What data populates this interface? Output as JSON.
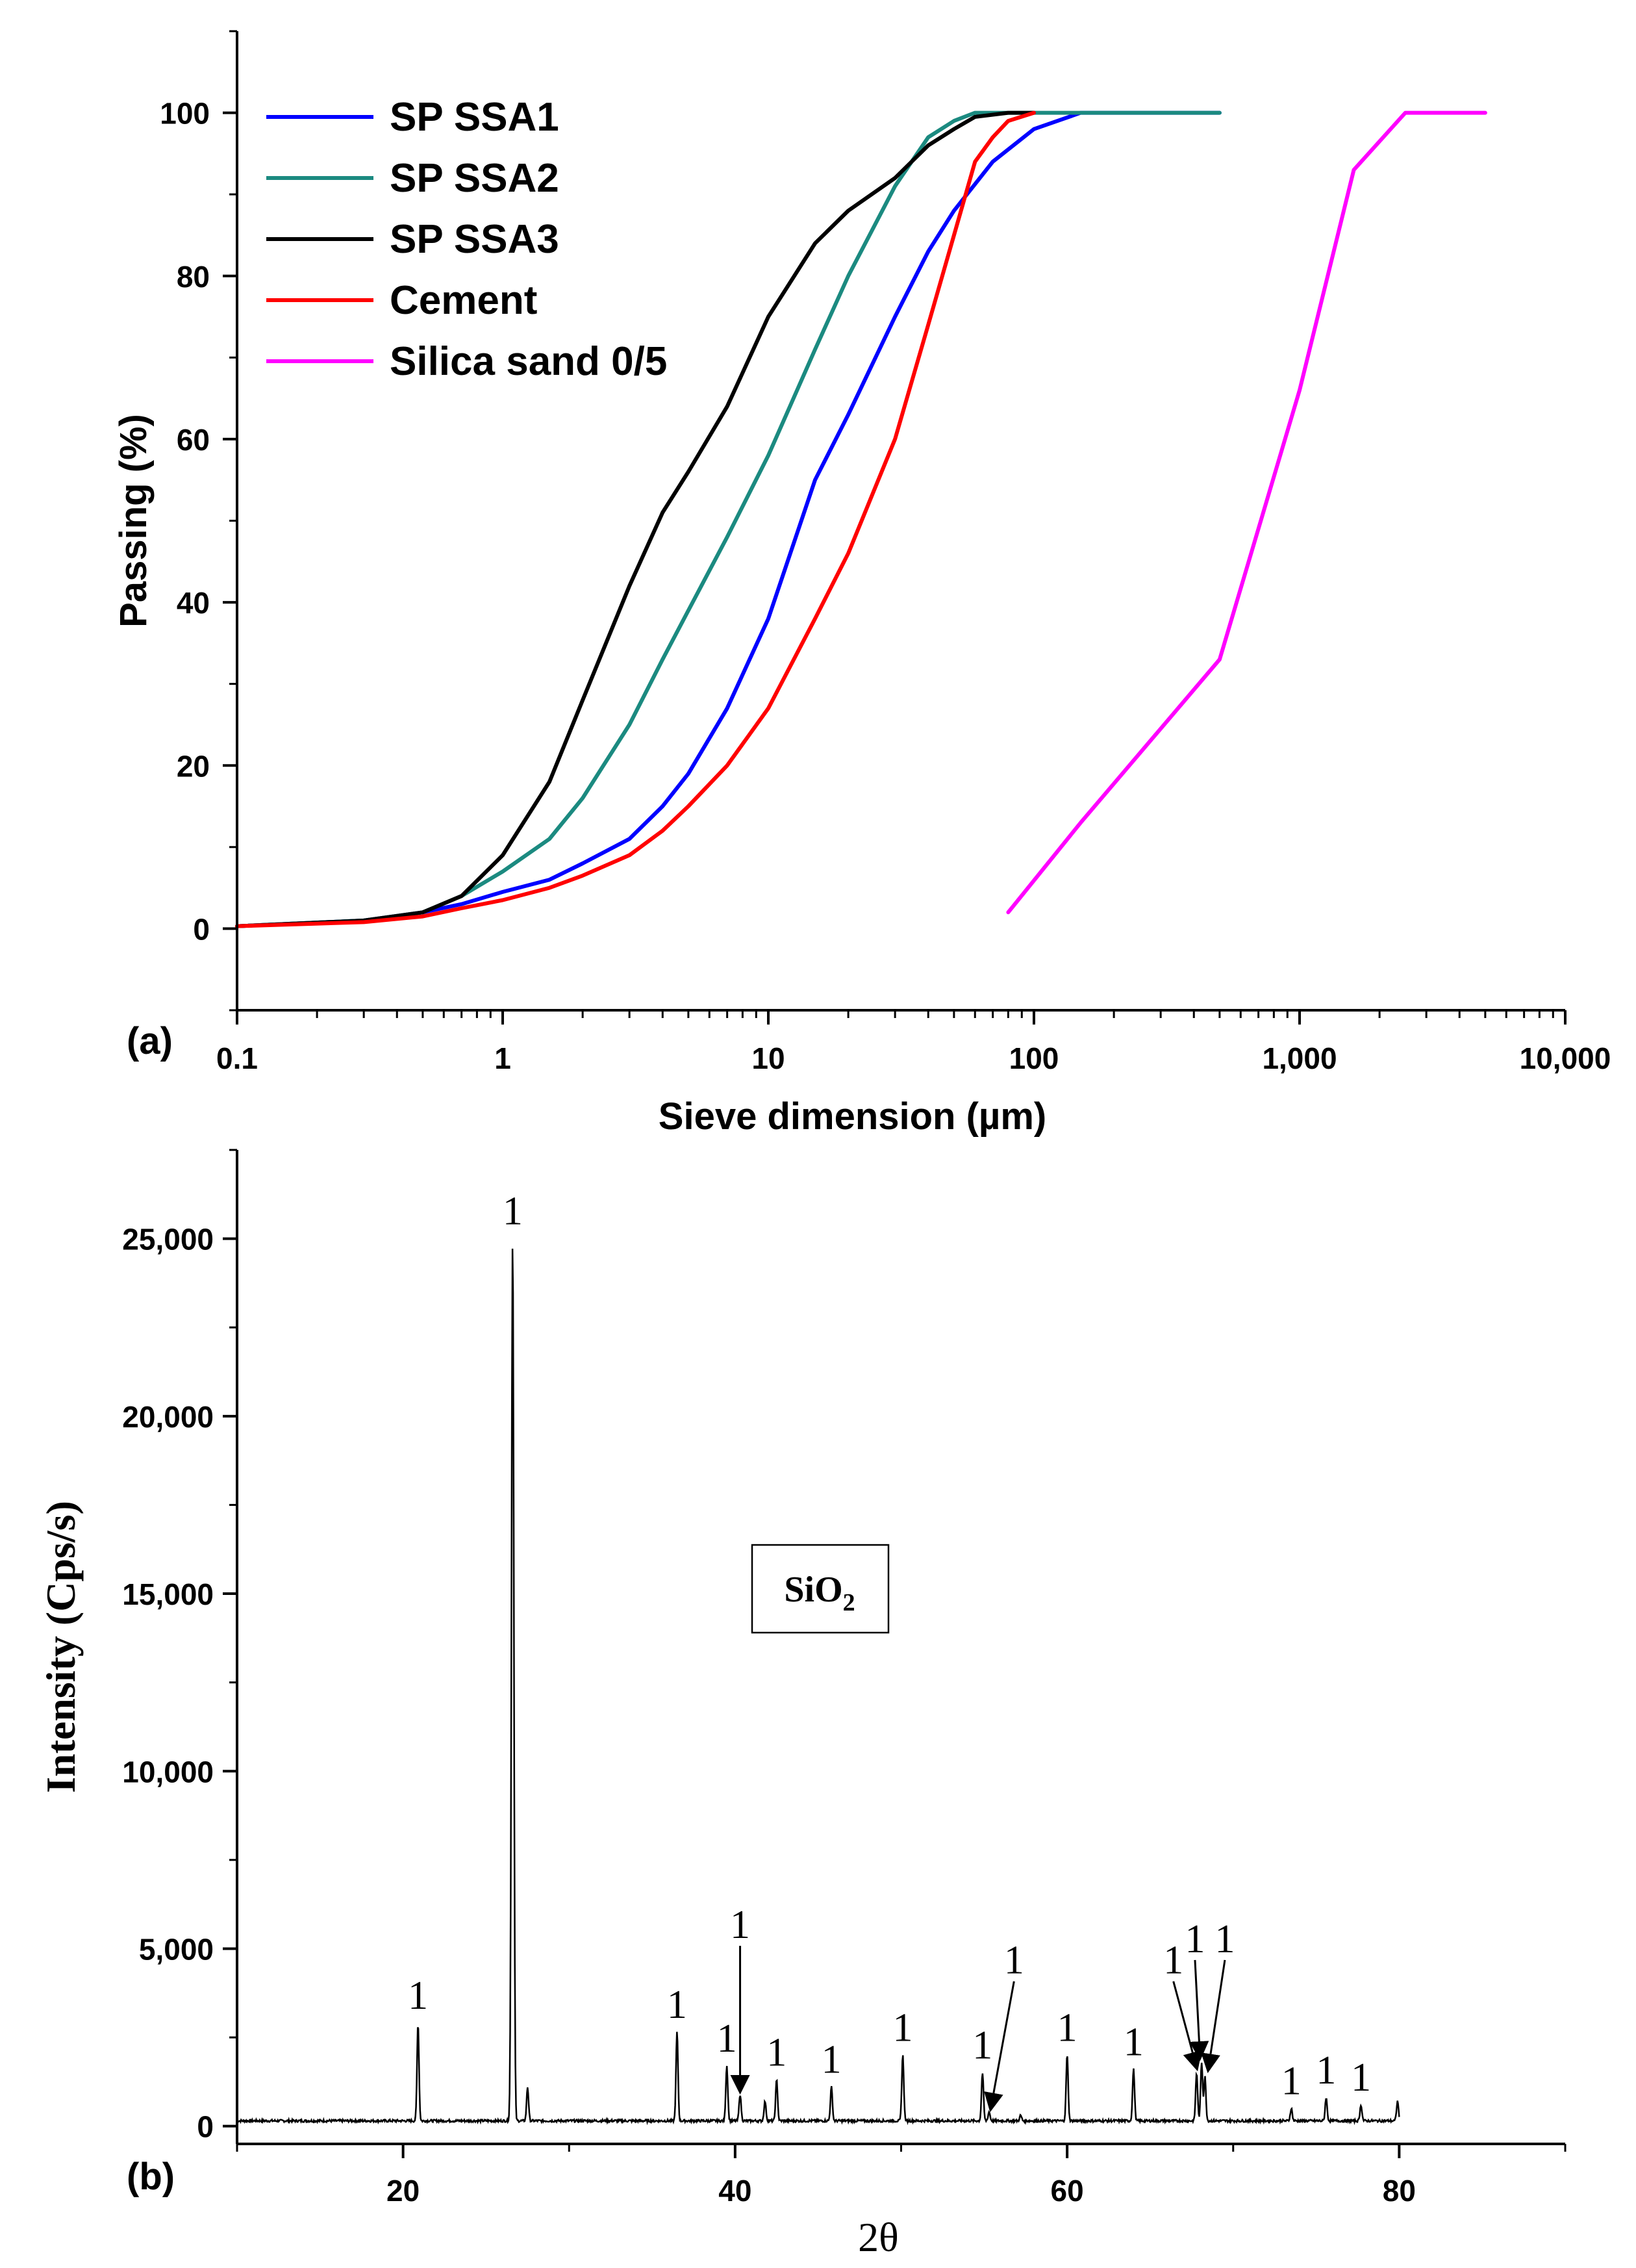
{
  "colors": {
    "sp_ssa1": "#0000ff",
    "sp_ssa2": "#1b8a80",
    "sp_ssa3": "#000000",
    "cement": "#ff0000",
    "silica_sand": "#ff00ff",
    "axis": "#000000"
  },
  "chart_data": [
    {
      "panel": "(a)",
      "type": "line",
      "xscale": "log",
      "xlabel": "Sieve dimension (µm)",
      "ylabel": "Passing (%)",
      "xlim": [
        0.1,
        10000
      ],
      "ylim": [
        -10,
        110
      ],
      "xticks": [
        0.1,
        1,
        10,
        100,
        1000,
        10000
      ],
      "xtick_labels": [
        "0.1",
        "1",
        "10",
        "100",
        "1,000",
        "10,000"
      ],
      "yticks": [
        0,
        20,
        40,
        60,
        80,
        100
      ],
      "ytick_labels": [
        "0",
        "20",
        "40",
        "60",
        "80",
        "100"
      ],
      "legend_position": "top-left",
      "series": [
        {
          "name": "SP SSA1",
          "color_key": "sp_ssa1",
          "x": [
            0.1,
            0.3,
            0.5,
            0.7,
            1,
            1.5,
            2,
            3,
            4,
            5,
            7,
            10,
            15,
            20,
            30,
            40,
            50,
            70,
            100,
            150,
            200,
            500
          ],
          "y": [
            0.3,
            1,
            2,
            3,
            4.5,
            6,
            8,
            11,
            15,
            19,
            27,
            38,
            55,
            63,
            75,
            83,
            88,
            94,
            98,
            100,
            100,
            100
          ]
        },
        {
          "name": "SP SSA2",
          "color_key": "sp_ssa2",
          "x": [
            0.1,
            0.3,
            0.5,
            0.7,
            1,
            1.5,
            2,
            3,
            4,
            5,
            7,
            10,
            15,
            20,
            30,
            40,
            50,
            60,
            70,
            100,
            200,
            500
          ],
          "y": [
            0.3,
            1,
            2,
            4,
            7,
            11,
            16,
            25,
            33,
            39,
            48,
            58,
            71,
            80,
            91,
            97,
            99,
            100,
            100,
            100,
            100,
            100
          ]
        },
        {
          "name": "SP SSA3",
          "color_key": "sp_ssa3",
          "x": [
            0.1,
            0.3,
            0.5,
            0.7,
            1,
            1.5,
            2,
            3,
            4,
            5,
            7,
            10,
            15,
            20,
            30,
            40,
            50,
            60,
            80,
            100
          ],
          "y": [
            0.3,
            1,
            2,
            4,
            9,
            18,
            28,
            42,
            51,
            56,
            64,
            75,
            84,
            88,
            92,
            96,
            98,
            99.5,
            100,
            100
          ]
        },
        {
          "name": "Cement",
          "color_key": "cement",
          "x": [
            0.1,
            0.3,
            0.5,
            0.7,
            1,
            1.5,
            2,
            3,
            4,
            5,
            7,
            10,
            15,
            20,
            30,
            40,
            50,
            60,
            70,
            80,
            100
          ],
          "y": [
            0.3,
            0.8,
            1.5,
            2.5,
            3.5,
            5,
            6.5,
            9,
            12,
            15,
            20,
            27,
            38,
            46,
            60,
            74,
            85,
            94,
            97,
            99,
            100
          ]
        },
        {
          "name": "Silica sand 0/5",
          "color_key": "silica_sand",
          "x": [
            80,
            150,
            500,
            1000,
            1600,
            2500,
            5000
          ],
          "y": [
            2,
            13,
            33,
            66,
            93,
            100,
            100
          ]
        }
      ]
    },
    {
      "panel": "(b)",
      "type": "line",
      "xlabel": "2θ",
      "ylabel": "Intensity (Cps/s)",
      "xlim": [
        10,
        90
      ],
      "ylim": [
        -500,
        27500
      ],
      "xticks": [
        20,
        40,
        60,
        80
      ],
      "xtick_labels": [
        "20",
        "40",
        "60",
        "80"
      ],
      "yticks": [
        0,
        5000,
        10000,
        15000,
        20000,
        25000
      ],
      "ytick_labels": [
        "0",
        "5,000",
        "10,000",
        "15,000",
        "20,000",
        "25,000"
      ],
      "annotation": {
        "main": "SiO",
        "subscript": "2"
      },
      "baseline": 150,
      "scan_range": [
        10,
        80
      ],
      "peaks": [
        {
          "x": 20.9,
          "y": 2900,
          "label": "1"
        },
        {
          "x": 26.6,
          "y": 25000,
          "label": "1"
        },
        {
          "x": 27.5,
          "y": 1100
        },
        {
          "x": 36.5,
          "y": 2650,
          "label": "1"
        },
        {
          "x": 39.5,
          "y": 1700,
          "label": "1"
        },
        {
          "x": 40.3,
          "y": 900,
          "label": "1",
          "arrow": true
        },
        {
          "x": 42.5,
          "y": 1300,
          "label": "1"
        },
        {
          "x": 41.8,
          "y": 700
        },
        {
          "x": 45.8,
          "y": 1100,
          "label": "1"
        },
        {
          "x": 50.1,
          "y": 2000,
          "label": "1"
        },
        {
          "x": 54.9,
          "y": 1500,
          "label": "1"
        },
        {
          "x": 55.3,
          "y": 400,
          "label": "1",
          "arrow": true
        },
        {
          "x": 57.2,
          "y": 300
        },
        {
          "x": 60.0,
          "y": 2000,
          "label": "1"
        },
        {
          "x": 64.0,
          "y": 1600,
          "label": "1"
        },
        {
          "x": 67.8,
          "y": 1500,
          "label": "1",
          "arrow": true
        },
        {
          "x": 68.1,
          "y": 1800,
          "label": "1",
          "arrow": true
        },
        {
          "x": 68.3,
          "y": 1400,
          "label": "1",
          "arrow": true
        },
        {
          "x": 73.5,
          "y": 500,
          "label": "1"
        },
        {
          "x": 75.6,
          "y": 800,
          "label": "1"
        },
        {
          "x": 77.7,
          "y": 600,
          "label": "1"
        },
        {
          "x": 79.9,
          "y": 700
        }
      ]
    }
  ]
}
